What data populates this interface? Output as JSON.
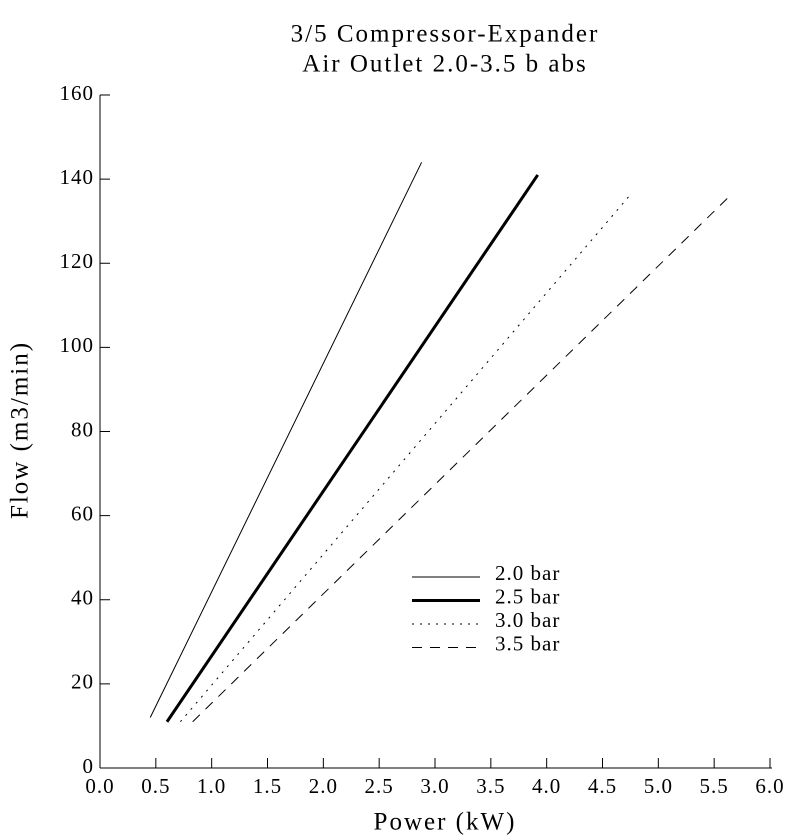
{
  "chart_data": {
    "type": "line",
    "title": "3/5 Compressor-Expander",
    "subtitle": "Air Outlet 2.0-3.5 b abs",
    "xlabel": "Power (kW)",
    "ylabel": "Flow (m3/min)",
    "xlim": [
      0,
      6
    ],
    "ylim": [
      0,
      160
    ],
    "xticks": [
      {
        "value": 0,
        "label": "0.0"
      },
      0.5,
      {
        "value": 1,
        "label": "1.0"
      },
      1.5,
      {
        "value": 2,
        "label": "2.0"
      },
      2.5,
      {
        "value": 3,
        "label": "3.0"
      },
      3.5,
      {
        "value": 4,
        "label": "4.0"
      },
      4.5,
      {
        "value": 5,
        "label": "5.0"
      },
      5.5,
      {
        "value": 6,
        "label": "6.0"
      }
    ],
    "yticks": [
      0,
      20,
      40,
      60,
      80,
      100,
      120,
      140,
      160
    ],
    "grid": false,
    "legend": "center",
    "series": [
      {
        "name": "2.0 bar",
        "color": "#000000",
        "linestyle": "solid",
        "linewidth": 1,
        "x": [
          0.45,
          2.88
        ],
        "values": [
          12,
          144
        ]
      },
      {
        "name": "2.5 bar",
        "color": "#000000",
        "linestyle": "solid",
        "linewidth": 3,
        "x": [
          0.6,
          3.92
        ],
        "values": [
          11,
          141
        ]
      },
      {
        "name": "3.0 bar",
        "color": "#000000",
        "linestyle": "dotted",
        "linewidth": 1,
        "x": [
          0.72,
          4.74
        ],
        "values": [
          11,
          136
        ]
      },
      {
        "name": "3.5 bar",
        "color": "#000000",
        "linestyle": "dashed",
        "linewidth": 1,
        "x": [
          0.83,
          5.64
        ],
        "values": [
          11,
          136
        ]
      }
    ]
  }
}
